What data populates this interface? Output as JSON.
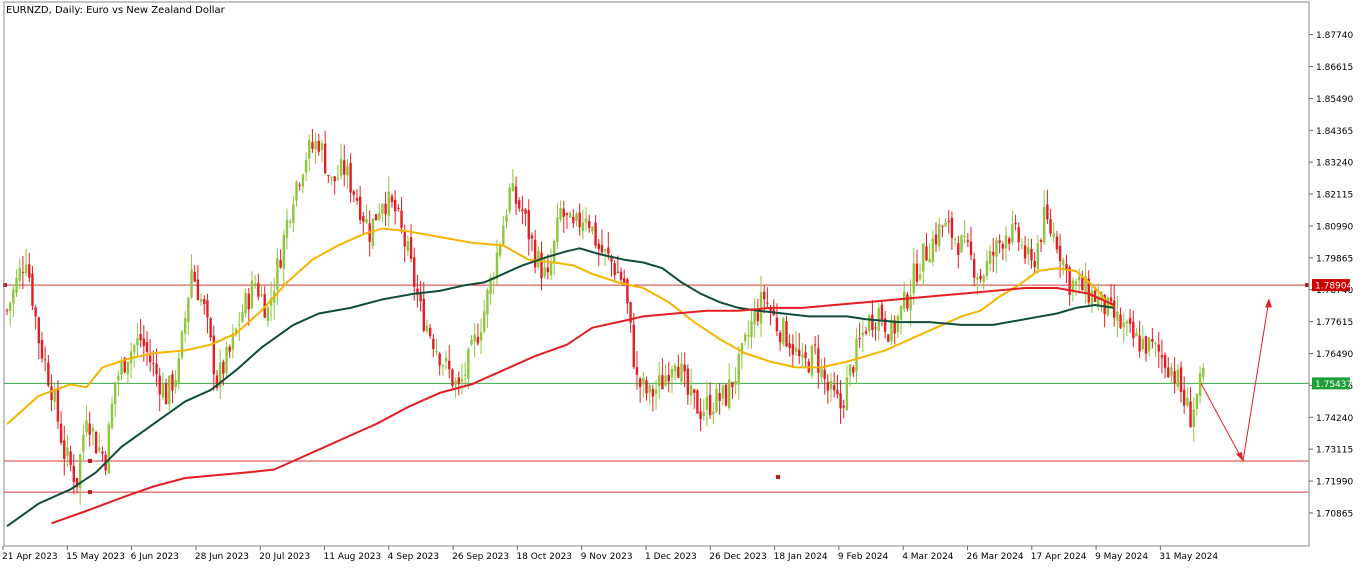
{
  "chart_data": {
    "type": "candlestick",
    "title": "EURNZD, Daily:  Euro vs New Zealand Dollar",
    "ylim": [
      1.697,
      1.8889
    ],
    "grid": false,
    "y_ticks": [
      "1.87740",
      "1.86615",
      "1.85490",
      "1.84365",
      "1.83240",
      "1.82115",
      "1.80990",
      "1.79865",
      "1.78740",
      "1.77615",
      "1.76490",
      "1.75365",
      "1.74240",
      "1.73115",
      "1.71990",
      "1.70865"
    ],
    "x_ticks": [
      "21 Apr 2023",
      "15 May 2023",
      "6 Jun 2023",
      "28 Jun 2023",
      "20 Jul 2023",
      "11 Aug 2023",
      "4 Sep 2023",
      "26 Sep 2023",
      "18 Oct 2023",
      "9 Nov 2023",
      "1 Dec 2023",
      "26 Dec 2023",
      "18 Jan 2024",
      "9 Feb 2024",
      "4 Mar 2024",
      "26 Mar 2024",
      "17 Apr 2024",
      "9 May 2024",
      "31 May 2024"
    ],
    "price_labels": [
      {
        "value": 1.78904,
        "text": "1.78904",
        "color": "#cc0000"
      },
      {
        "value": 1.75437,
        "text": "1.75437",
        "color": "#1e9e3a"
      }
    ],
    "horizontal_levels": [
      {
        "value": 1.78904,
        "color": "#d43a3a"
      },
      {
        "value": 1.75437,
        "color": "#38a84a"
      },
      {
        "value": 1.727,
        "color": "#d43a3a"
      },
      {
        "value": 1.716,
        "color": "#d43a3a"
      }
    ],
    "projection_arrow": {
      "start": [
        1.75437
      ],
      "mid": [
        1.727
      ],
      "end": [
        1.784
      ]
    },
    "colors": {
      "bull": "#8dc63f",
      "bear": "#e31e24",
      "ma_fast": "#f5b400",
      "ma_mid": "#0e4d3a",
      "ma_slow": "#e31e24"
    },
    "series": [
      {
        "type": "ohlc",
        "anchors": [
          [
            0,
            1.78
          ],
          [
            6,
            1.8
          ],
          [
            10,
            1.77
          ],
          [
            14,
            1.753
          ],
          [
            18,
            1.73
          ],
          [
            22,
            1.72
          ],
          [
            25,
            1.745
          ],
          [
            28,
            1.733
          ],
          [
            31,
            1.728
          ],
          [
            34,
            1.755
          ],
          [
            38,
            1.765
          ],
          [
            42,
            1.77
          ],
          [
            46,
            1.76
          ],
          [
            50,
            1.75
          ],
          [
            54,
            1.76
          ],
          [
            58,
            1.795
          ],
          [
            62,
            1.78
          ],
          [
            66,
            1.755
          ],
          [
            70,
            1.765
          ],
          [
            74,
            1.78
          ],
          [
            78,
            1.79
          ],
          [
            82,
            1.78
          ],
          [
            86,
            1.8
          ],
          [
            90,
            1.822
          ],
          [
            94,
            1.835
          ],
          [
            98,
            1.84
          ],
          [
            102,
            1.825
          ],
          [
            106,
            1.83
          ],
          [
            110,
            1.82
          ],
          [
            114,
            1.808
          ],
          [
            118,
            1.82
          ],
          [
            122,
            1.815
          ],
          [
            126,
            1.8
          ],
          [
            130,
            1.78
          ],
          [
            134,
            1.77
          ],
          [
            138,
            1.76
          ],
          [
            142,
            1.752
          ],
          [
            146,
            1.765
          ],
          [
            150,
            1.78
          ],
          [
            154,
            1.8
          ],
          [
            158,
            1.822
          ],
          [
            162,
            1.815
          ],
          [
            166,
            1.8
          ],
          [
            170,
            1.79
          ],
          [
            174,
            1.815
          ],
          [
            178,
            1.808
          ],
          [
            182,
            1.815
          ],
          [
            186,
            1.802
          ],
          [
            190,
            1.797
          ],
          [
            194,
            1.79
          ],
          [
            198,
            1.755
          ],
          [
            202,
            1.75
          ],
          [
            206,
            1.755
          ],
          [
            210,
            1.765
          ],
          [
            214,
            1.75
          ],
          [
            218,
            1.745
          ],
          [
            222,
            1.748
          ],
          [
            226,
            1.75
          ],
          [
            230,
            1.76
          ],
          [
            234,
            1.775
          ],
          [
            238,
            1.785
          ],
          [
            242,
            1.775
          ],
          [
            246,
            1.77
          ],
          [
            250,
            1.76
          ],
          [
            254,
            1.765
          ],
          [
            258,
            1.752
          ],
          [
            262,
            1.746
          ],
          [
            266,
            1.762
          ],
          [
            270,
            1.775
          ],
          [
            274,
            1.78
          ],
          [
            278,
            1.772
          ],
          [
            282,
            1.782
          ],
          [
            286,
            1.795
          ],
          [
            290,
            1.803
          ],
          [
            294,
            1.81
          ],
          [
            298,
            1.806
          ],
          [
            302,
            1.8
          ],
          [
            306,
            1.792
          ],
          [
            310,
            1.8
          ],
          [
            314,
            1.808
          ],
          [
            318,
            1.805
          ],
          [
            322,
            1.795
          ],
          [
            326,
            1.812
          ],
          [
            330,
            1.805
          ],
          [
            334,
            1.79
          ],
          [
            338,
            1.788
          ],
          [
            342,
            1.785
          ],
          [
            346,
            1.78
          ],
          [
            350,
            1.775
          ],
          [
            354,
            1.77
          ],
          [
            358,
            1.768
          ],
          [
            362,
            1.765
          ],
          [
            366,
            1.76
          ],
          [
            368,
            1.755
          ],
          [
            370,
            1.748
          ],
          [
            372,
            1.743
          ],
          [
            374,
            1.75
          ],
          [
            376,
            1.756
          ]
        ]
      },
      {
        "name": "",
        "type": "ma",
        "key": "ma_fast",
        "points": [
          [
            0,
            1.74
          ],
          [
            10,
            1.75
          ],
          [
            20,
            1.754
          ],
          [
            25,
            1.753
          ],
          [
            30,
            1.76
          ],
          [
            38,
            1.763
          ],
          [
            46,
            1.765
          ],
          [
            56,
            1.766
          ],
          [
            64,
            1.768
          ],
          [
            72,
            1.772
          ],
          [
            80,
            1.78
          ],
          [
            88,
            1.79
          ],
          [
            96,
            1.798
          ],
          [
            104,
            1.803
          ],
          [
            112,
            1.807
          ],
          [
            118,
            1.809
          ],
          [
            126,
            1.808
          ],
          [
            136,
            1.806
          ],
          [
            146,
            1.804
          ],
          [
            156,
            1.803
          ],
          [
            164,
            1.798
          ],
          [
            172,
            1.797
          ],
          [
            178,
            1.796
          ],
          [
            184,
            1.793
          ],
          [
            192,
            1.79
          ],
          [
            200,
            1.788
          ],
          [
            208,
            1.783
          ],
          [
            216,
            1.776
          ],
          [
            224,
            1.77
          ],
          [
            232,
            1.765
          ],
          [
            240,
            1.762
          ],
          [
            248,
            1.76
          ],
          [
            256,
            1.76
          ],
          [
            264,
            1.762
          ],
          [
            270,
            1.764
          ],
          [
            276,
            1.766
          ],
          [
            284,
            1.77
          ],
          [
            292,
            1.774
          ],
          [
            300,
            1.778
          ],
          [
            306,
            1.78
          ],
          [
            312,
            1.785
          ],
          [
            318,
            1.789
          ],
          [
            324,
            1.794
          ],
          [
            330,
            1.795
          ],
          [
            336,
            1.794
          ],
          [
            342,
            1.788
          ],
          [
            346,
            1.783
          ],
          [
            348,
            1.781
          ]
        ]
      },
      {
        "name": "",
        "type": "ma",
        "key": "ma_mid",
        "points": [
          [
            0,
            1.704
          ],
          [
            10,
            1.712
          ],
          [
            20,
            1.717
          ],
          [
            28,
            1.723
          ],
          [
            36,
            1.732
          ],
          [
            46,
            1.74
          ],
          [
            56,
            1.748
          ],
          [
            64,
            1.752
          ],
          [
            72,
            1.759
          ],
          [
            80,
            1.767
          ],
          [
            90,
            1.775
          ],
          [
            98,
            1.779
          ],
          [
            108,
            1.781
          ],
          [
            118,
            1.784
          ],
          [
            128,
            1.786
          ],
          [
            136,
            1.787
          ],
          [
            144,
            1.789
          ],
          [
            150,
            1.79
          ],
          [
            156,
            1.793
          ],
          [
            162,
            1.796
          ],
          [
            170,
            1.799
          ],
          [
            176,
            1.801
          ],
          [
            180,
            1.802
          ],
          [
            186,
            1.8
          ],
          [
            194,
            1.798
          ],
          [
            200,
            1.797
          ],
          [
            206,
            1.795
          ],
          [
            212,
            1.79
          ],
          [
            218,
            1.786
          ],
          [
            224,
            1.783
          ],
          [
            230,
            1.781
          ],
          [
            236,
            1.78
          ],
          [
            244,
            1.779
          ],
          [
            252,
            1.778
          ],
          [
            258,
            1.778
          ],
          [
            264,
            1.778
          ],
          [
            270,
            1.777
          ],
          [
            280,
            1.776
          ],
          [
            290,
            1.776
          ],
          [
            300,
            1.775
          ],
          [
            310,
            1.775
          ],
          [
            320,
            1.777
          ],
          [
            330,
            1.779
          ],
          [
            336,
            1.781
          ],
          [
            342,
            1.782
          ],
          [
            348,
            1.781
          ]
        ]
      },
      {
        "name": "",
        "type": "ma",
        "key": "ma_slow",
        "points": [
          [
            14,
            1.705
          ],
          [
            24,
            1.709
          ],
          [
            36,
            1.714
          ],
          [
            46,
            1.718
          ],
          [
            56,
            1.721
          ],
          [
            66,
            1.722
          ],
          [
            76,
            1.723
          ],
          [
            84,
            1.724
          ],
          [
            92,
            1.728
          ],
          [
            100,
            1.732
          ],
          [
            108,
            1.736
          ],
          [
            116,
            1.74
          ],
          [
            126,
            1.746
          ],
          [
            136,
            1.751
          ],
          [
            146,
            1.754
          ],
          [
            156,
            1.759
          ],
          [
            166,
            1.764
          ],
          [
            176,
            1.768
          ],
          [
            184,
            1.774
          ],
          [
            192,
            1.776
          ],
          [
            200,
            1.778
          ],
          [
            210,
            1.779
          ],
          [
            220,
            1.78
          ],
          [
            230,
            1.78
          ],
          [
            240,
            1.781
          ],
          [
            250,
            1.781
          ],
          [
            260,
            1.782
          ],
          [
            270,
            1.783
          ],
          [
            280,
            1.784
          ],
          [
            290,
            1.785
          ],
          [
            300,
            1.786
          ],
          [
            310,
            1.787
          ],
          [
            320,
            1.788
          ],
          [
            330,
            1.788
          ],
          [
            340,
            1.786
          ],
          [
            348,
            1.782
          ]
        ]
      }
    ]
  }
}
